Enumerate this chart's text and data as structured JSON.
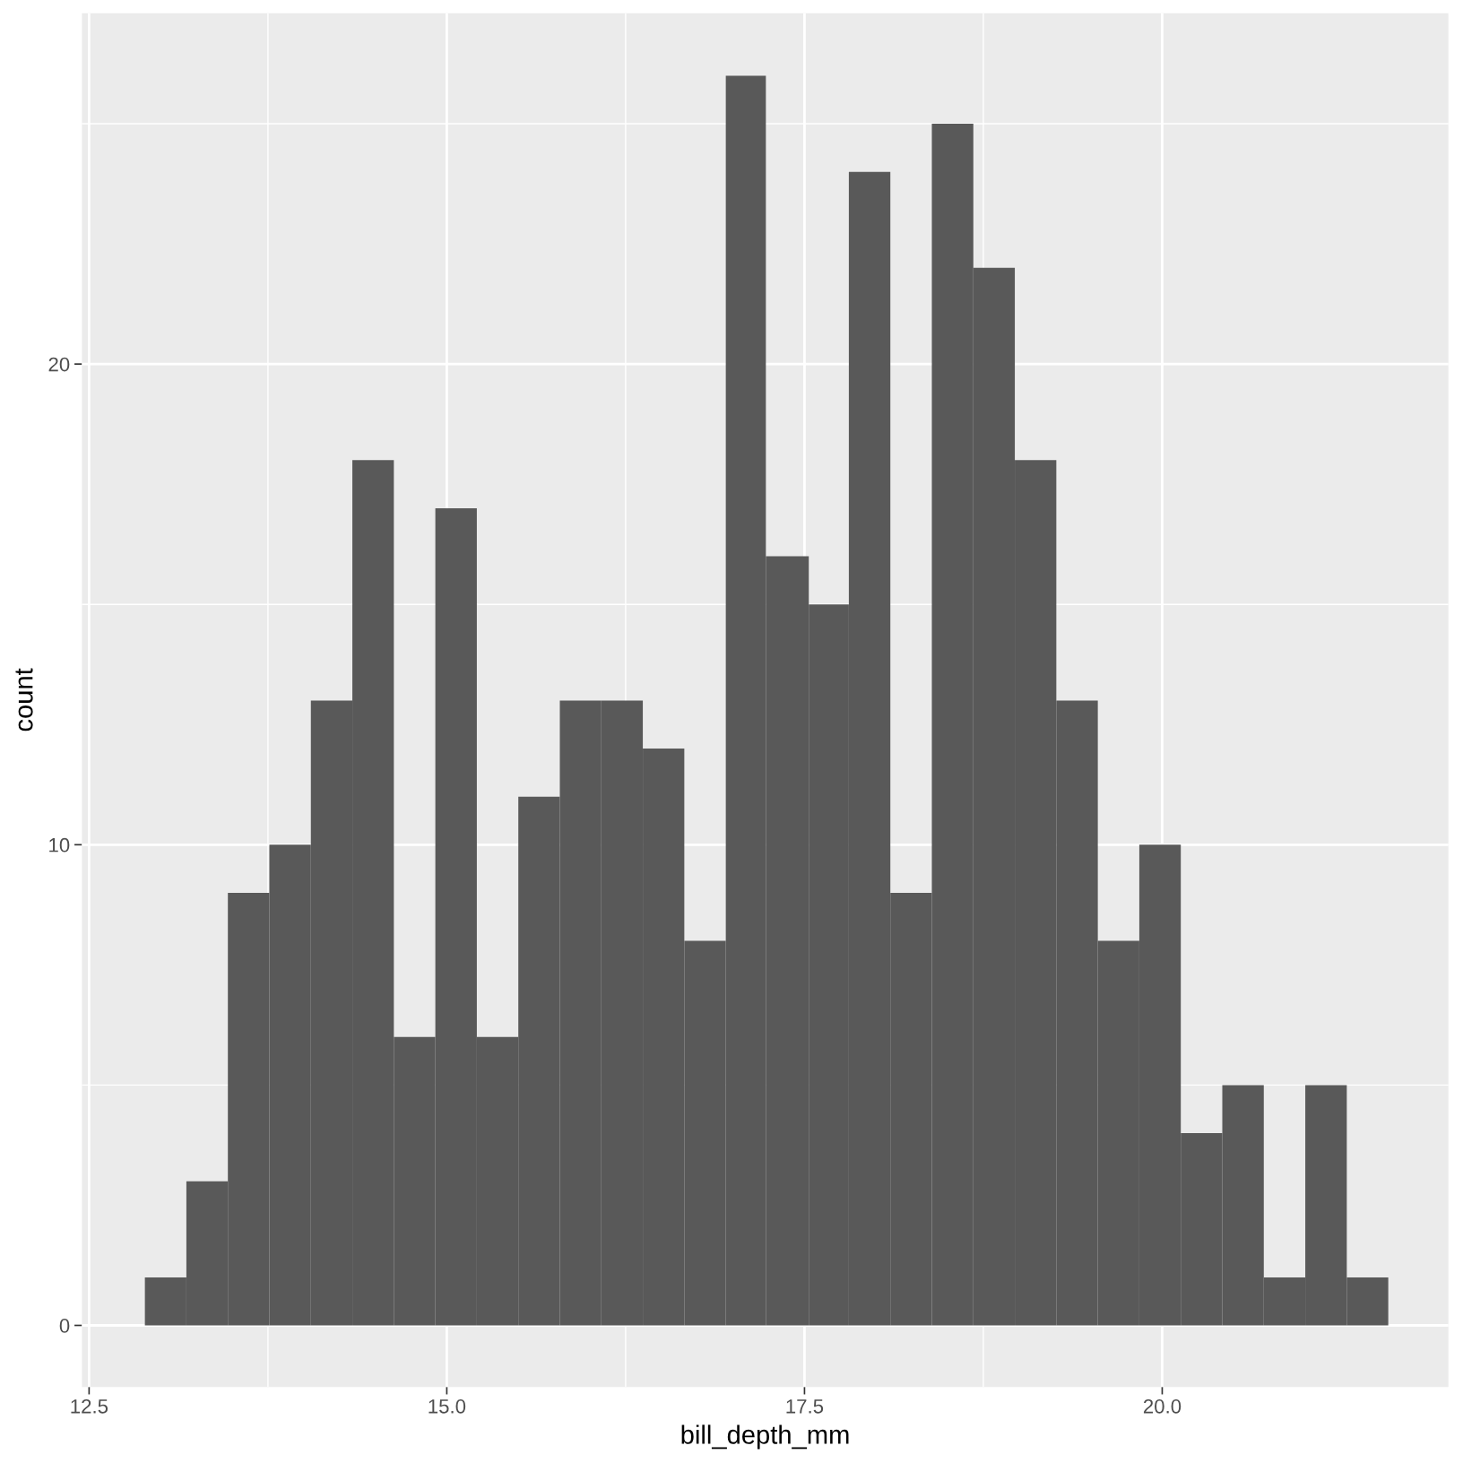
{
  "chart_data": {
    "type": "histogram",
    "xlabel": "bill_depth_mm",
    "ylabel": "count",
    "color": "#595959",
    "bins": [
      12.89,
      13.18,
      13.47,
      13.76,
      14.05,
      14.34,
      14.63,
      14.92,
      15.21,
      15.5,
      15.79,
      16.08,
      16.37,
      16.66,
      16.95,
      17.23,
      17.53,
      17.81,
      18.1,
      18.39,
      18.68,
      18.97,
      19.26,
      19.55,
      19.84,
      20.13,
      20.42,
      20.71,
      21.0,
      21.29,
      21.58
    ],
    "values": [
      1,
      3,
      9,
      10,
      13,
      18,
      6,
      17,
      6,
      11,
      13,
      13,
      12,
      8,
      26,
      16,
      15,
      24,
      9,
      25,
      22,
      18,
      13,
      8,
      10,
      4,
      5,
      1,
      5,
      1
    ],
    "xlim": [
      12.45,
      22.0
    ],
    "ylim": [
      -1.28,
      27.3
    ],
    "xticks": [
      12.5,
      {
        "value": 15,
        "label": "15.0"
      },
      17.5,
      {
        "value": 20,
        "label": "20.0"
      }
    ],
    "yticks": [
      0,
      10,
      20
    ],
    "grid": true
  }
}
